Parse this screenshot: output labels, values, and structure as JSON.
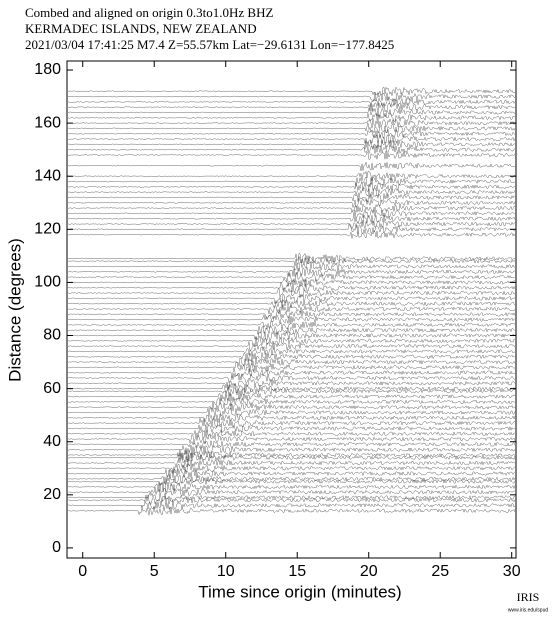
{
  "chart_data": {
    "type": "record-section",
    "title": "Combed and aligned on origin  0.3to1.0Hz  BHZ",
    "subtitle": "KERMADEC ISLANDS, NEW ZEALAND",
    "event": "2021/03/04  17:41:25  M7.4  Z=55.57km Lat=−29.6131 Lon=−177.8425",
    "x_label": "Time since origin (minutes)",
    "y_label": "Distance (degrees)",
    "logo": "IRIS",
    "logo_url": "www.iris.edu/spud",
    "xlim": [
      -1.1,
      30.3
    ],
    "ylim": [
      -3.8,
      183.4
    ],
    "xticks": [
      0,
      5,
      10,
      15,
      20,
      25,
      30
    ],
    "yticks": [
      0,
      20,
      40,
      60,
      80,
      100,
      120,
      140,
      160,
      180
    ],
    "color": "#000000",
    "traces": {
      "distances": [
        14,
        16,
        18,
        19,
        21,
        23,
        25,
        26,
        28,
        30,
        32,
        34,
        35,
        37,
        39,
        41,
        43,
        45,
        47,
        49,
        51,
        53,
        55,
        57,
        59,
        60,
        62,
        64,
        66,
        68,
        70,
        72,
        74,
        76,
        78,
        80,
        82,
        84,
        86,
        88,
        90,
        92,
        94,
        96,
        98,
        100,
        102,
        104,
        106,
        108,
        109,
        118,
        120,
        122,
        124,
        126,
        128,
        130,
        132,
        134,
        136,
        138,
        140,
        144,
        148,
        150,
        152,
        154,
        156,
        158,
        160,
        162,
        164,
        166,
        168,
        170,
        172
      ],
      "onsets": [
        3.9,
        4.1,
        4.4,
        4.5,
        4.8,
        5.1,
        5.4,
        5.5,
        5.8,
        6.1,
        6.4,
        6.6,
        6.7,
        7.0,
        7.3,
        7.5,
        7.8,
        8.0,
        8.2,
        8.5,
        8.7,
        9.0,
        9.2,
        9.4,
        9.7,
        9.8,
        10.0,
        10.2,
        10.4,
        10.7,
        10.9,
        11.1,
        11.3,
        11.5,
        11.8,
        12.0,
        12.2,
        12.4,
        12.6,
        12.8,
        13.0,
        13.2,
        13.4,
        13.6,
        13.8,
        14.0,
        14.2,
        14.4,
        14.6,
        14.8,
        14.9,
        18.6,
        18.6,
        18.7,
        18.7,
        18.8,
        18.8,
        18.9,
        18.9,
        19.0,
        19.0,
        19.1,
        19.2,
        19.4,
        19.6,
        19.6,
        19.7,
        19.7,
        19.8,
        19.8,
        19.9,
        19.9,
        20.0,
        20.0,
        20.1,
        20.1,
        20.2
      ]
    }
  }
}
